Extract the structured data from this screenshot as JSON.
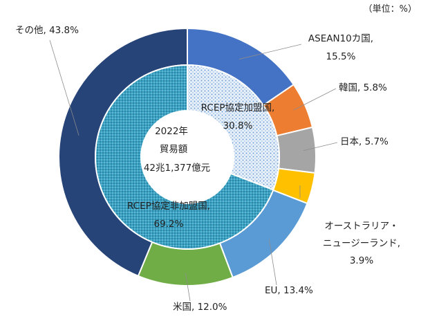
{
  "unit_label": "（単位：%）",
  "chart_data": [
    {
      "type": "pie",
      "variant": "donut-outer",
      "label_format": "{name}, {value}%",
      "slices": [
        {
          "name": "ASEAN10カ国",
          "value": 15.5,
          "color": "#4472c4"
        },
        {
          "name": "韓国",
          "value": 5.8,
          "color": "#ed7d31"
        },
        {
          "name": "日本",
          "value": 5.7,
          "color": "#a5a5a5"
        },
        {
          "name": "オーストラリア・ニュージーランド",
          "value": 3.9,
          "color": "#ffc000"
        },
        {
          "name": "EU",
          "value": 13.4,
          "color": "#5b9bd5"
        },
        {
          "name": "米国",
          "value": 12.0,
          "color": "#70ad47"
        },
        {
          "name": "その他",
          "value": 43.8,
          "color": "#264478"
        }
      ]
    },
    {
      "type": "pie",
      "variant": "donut-inner",
      "slices": [
        {
          "name": "RCEP協定加盟国",
          "value": 30.8,
          "color": "#8fb6e0",
          "pattern": "light-dots"
        },
        {
          "name": "RCEP協定非加盟国",
          "value": 69.2,
          "color": "#2e8fb0",
          "pattern": "dense-dots"
        }
      ]
    }
  ],
  "center": {
    "line1": "2022年",
    "line2": "貿易額",
    "line3": "42兆1,377億元"
  }
}
